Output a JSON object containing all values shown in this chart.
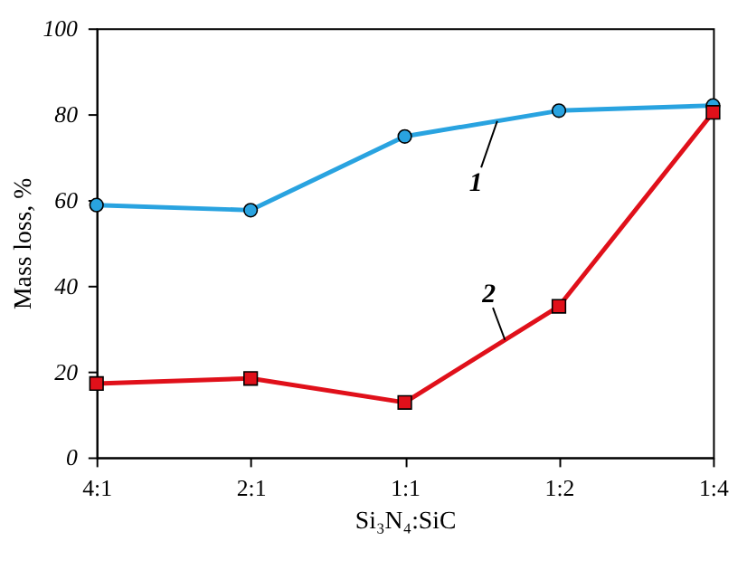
{
  "chart_data": {
    "type": "line",
    "xlabel": "Si₃N₄:SiC",
    "ylabel": "Mass loss, %",
    "categories": [
      "4:1",
      "2:1",
      "1:1",
      "1:2",
      "1:4"
    ],
    "series": [
      {
        "name": "1",
        "color": "#29a3e0",
        "marker": "circle",
        "values": [
          58.8,
          57.6,
          74.8,
          80.8,
          82
        ]
      },
      {
        "name": "2",
        "color": "#e0101a",
        "marker": "square",
        "values": [
          17.2,
          18.4,
          12.8,
          35.2,
          80.4
        ]
      }
    ],
    "ylim": [
      0,
      100
    ],
    "yticks": [
      0,
      20,
      40,
      60,
      80,
      100
    ],
    "grid": false,
    "line_style": "solid"
  }
}
